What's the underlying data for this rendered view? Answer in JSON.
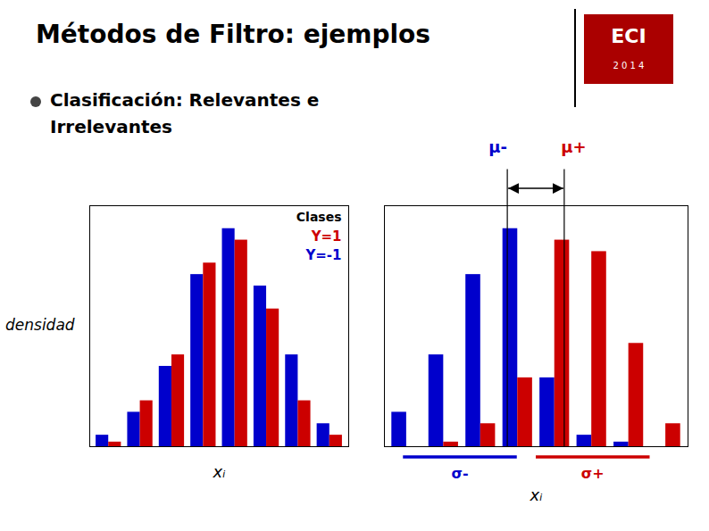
{
  "chart_data": [
    {
      "type": "bar",
      "title": "Métodos de Filtro: ejemplos",
      "subtitle": [
        "Clasificación: Relevantes e",
        "Irrelevan​tes"
      ],
      "annotations": [
        {
          "text": "ECI"
        },
        {
          "text": "2 0 1 4"
        }
      ],
      "categories": [
        null,
        null,
        null,
        null,
        null,
        null,
        null,
        null
      ],
      "series": [
        {
          "name": "Y=-1",
          "color": "#0000cc",
          "values": [
            0.05,
            0.15,
            0.35,
            0.75,
            0.95,
            0.7,
            0.4,
            0.1
          ]
        },
        {
          "name": "Y=1",
          "color": "#cc0000",
          "values": [
            0.02,
            0.2,
            0.4,
            0.8,
            0.9,
            0.6,
            0.2,
            0.05
          ]
        }
      ],
      "ylim": [
        0,
        1.05
      ],
      "yticks": [],
      "tick_labels": false,
      "xlabel": "xᵢ",
      "ylabel": "densidad",
      "legend": "top-right",
      "legend_title": "Clases"
    },
    {
      "type": "bar",
      "categories": [
        null,
        null,
        null,
        null,
        null,
        null,
        null,
        null
      ],
      "series": [
        {
          "name": "Y=-1",
          "color": "#0000cc",
          "values": [
            0.15,
            0.4,
            0.75,
            0.95,
            0.3,
            0.05,
            0.02,
            0.0
          ]
        },
        {
          "name": "Y=1",
          "color": "#cc0000",
          "values": [
            0.0,
            0.02,
            0.1,
            0.3,
            0.9,
            0.85,
            0.45,
            0.1
          ]
        }
      ],
      "ylim": [
        0,
        1.05
      ],
      "yticks": [],
      "tick_labels": false,
      "xlabel": "xᵢ",
      "annotations": [
        {
          "text": "μ-",
          "color": "#0000cc"
        },
        {
          "text": "μ+",
          "color": "#cc0000"
        },
        {
          "text": "σ-",
          "color": "#0000cc"
        },
        {
          "text": "σ+",
          "color": "#cc0000"
        }
      ]
    }
  ]
}
